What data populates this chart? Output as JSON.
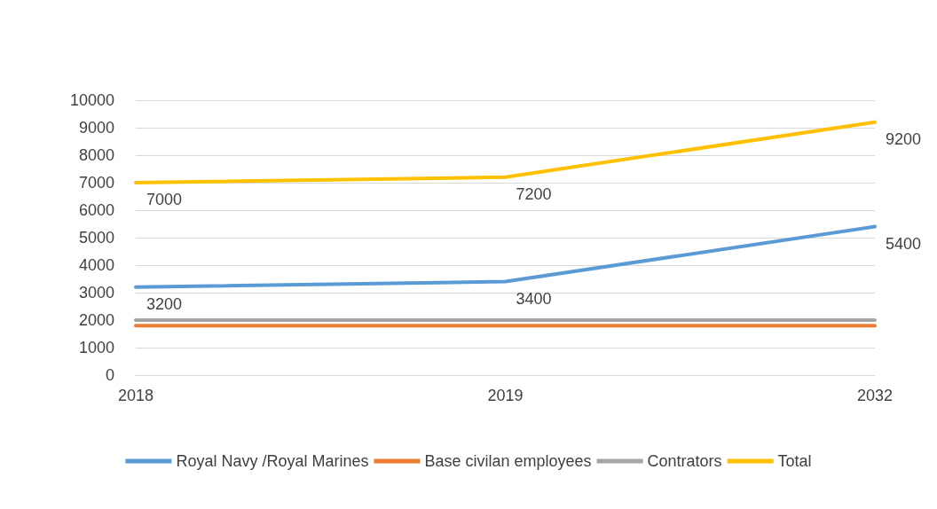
{
  "chart_data": {
    "type": "line",
    "categories": [
      "2018",
      "2019",
      "2032"
    ],
    "series": [
      {
        "name": "Royal Navy /Royal Marines",
        "color": "#5b9bd5",
        "values": [
          3200,
          3400,
          5400
        ],
        "value_labels": [
          "3200",
          "3400",
          "5400"
        ]
      },
      {
        "name": "Base civilan employees",
        "color": "#ed7d31",
        "values": [
          1800,
          1800,
          1800
        ]
      },
      {
        "name": "Contrators",
        "color": "#a5a5a5",
        "values": [
          2000,
          2000,
          2000
        ]
      },
      {
        "name": "Total",
        "color": "#ffc000",
        "values": [
          7000,
          7200,
          9200
        ],
        "value_labels": [
          "7000",
          "7200",
          "9200"
        ]
      }
    ],
    "ylim": [
      0,
      10000
    ],
    "yticks": [
      0,
      1000,
      2000,
      3000,
      4000,
      5000,
      6000,
      7000,
      8000,
      9000,
      10000
    ],
    "grid": "y",
    "legend": "bottom",
    "marker": "none",
    "line_style": "solid"
  }
}
